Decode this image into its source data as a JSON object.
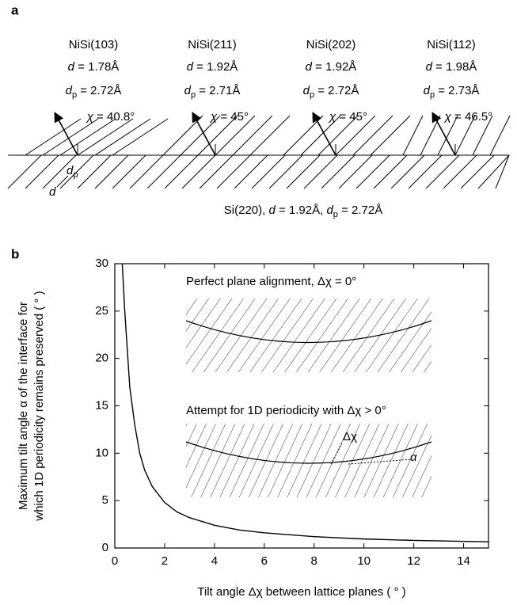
{
  "panel_a": {
    "label": "a",
    "phases": [
      {
        "name": "NiSi(103)",
        "d_label": {
          "symbol": "d",
          "text": " = 1.78Å"
        },
        "dp_label": {
          "symbol": "d",
          "sub": "p",
          "text": " = 2.72Å"
        },
        "chi_label": {
          "symbol": "χ",
          "text": " = 40.8°"
        }
      },
      {
        "name": "NiSi(211)",
        "d_label": {
          "symbol": "d",
          "text": " = 1.92Å"
        },
        "dp_label": {
          "symbol": "d",
          "sub": "p",
          "text": " = 2.71Å"
        },
        "chi_label": {
          "symbol": "χ",
          "text": " = 45°"
        }
      },
      {
        "name": "NiSi(202)",
        "d_label": {
          "symbol": "d",
          "text": " = 1.92Å"
        },
        "dp_label": {
          "symbol": "d",
          "sub": "p",
          "text": " = 2.72Å"
        },
        "chi_label": {
          "symbol": "χ",
          "text": " = 45°"
        }
      },
      {
        "name": "NiSi(112)",
        "d_label": {
          "symbol": "d",
          "text": " = 1.98Å"
        },
        "dp_label": {
          "symbol": "d",
          "sub": "p",
          "text": " = 2.73Å"
        },
        "chi_label": {
          "symbol": "χ",
          "text": " = 46.5°"
        }
      }
    ],
    "spacing_labels": {
      "dp_symbol": "d",
      "dp_sub": "p",
      "d_symbol": "d"
    },
    "substrate_label": [
      "Si(220), ",
      "d",
      " = 1.92Å, ",
      "d",
      "p",
      " = 2.72Å"
    ]
  },
  "chart_data": {
    "type": "line",
    "panel_label": "b",
    "xlabel": "Tilt angle Δχ between lattice planes ( ° )",
    "ylabel": [
      "Maximum tilt angle α of the interface for",
      "which 1D periodicity remains preserved ( ° )"
    ],
    "annotations": [
      "Perfect plane alignment, Δχ = 0°",
      "Attempt for 1D periodicity with Δχ > 0°",
      "Δχ",
      "α"
    ],
    "x": [
      0.3,
      0.4,
      0.5,
      0.6,
      0.8,
      1,
      1.2,
      1.5,
      2,
      2.5,
      3,
      4,
      5,
      6,
      8,
      10,
      12,
      15
    ],
    "values": [
      30,
      25,
      21,
      17,
      13,
      10,
      8.2,
      6.5,
      4.8,
      3.8,
      3.2,
      2.4,
      1.9,
      1.6,
      1.2,
      0.95,
      0.8,
      0.65
    ],
    "color": "#000000",
    "xlim": [
      0,
      15
    ],
    "xticks": [
      0,
      2,
      4,
      6,
      8,
      10,
      12,
      14
    ],
    "ylim": [
      0,
      30
    ],
    "yticks": [
      0,
      5,
      10,
      15,
      20,
      25,
      30
    ]
  }
}
